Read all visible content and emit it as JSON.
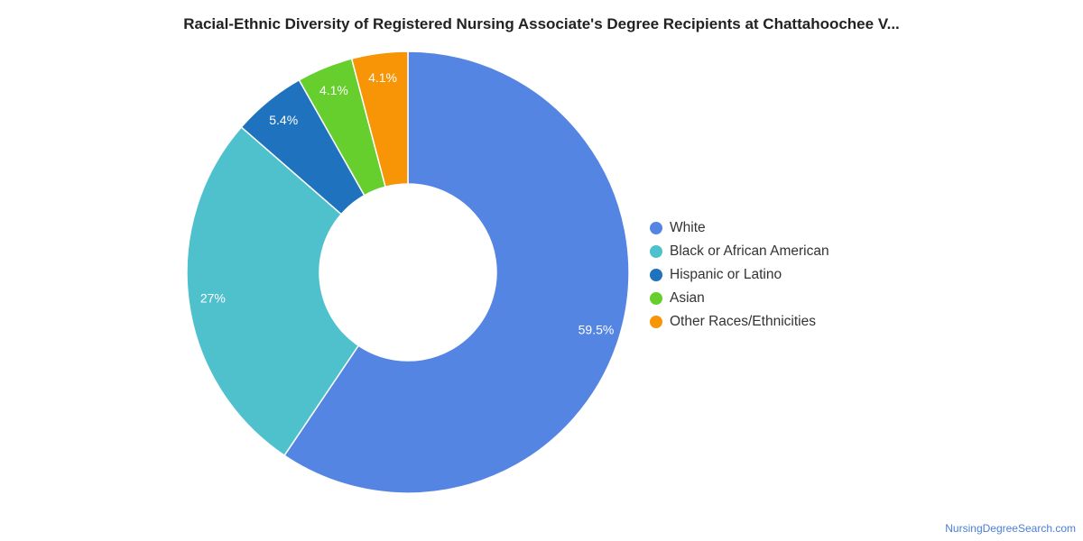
{
  "chart_data": {
    "type": "pie",
    "title": "Racial-Ethnic Diversity of Registered Nursing Associate's Degree Recipients at Chattahoochee V...",
    "donut": true,
    "categories": [
      "White",
      "Black or African American",
      "Hispanic or Latino",
      "Asian",
      "Other Races/Ethnicities"
    ],
    "values": [
      59.5,
      27,
      5.4,
      4.1,
      4.1
    ],
    "value_labels": [
      "59.5%",
      "27%",
      "5.4%",
      "4.1%",
      "4.1%"
    ],
    "colors": [
      "#5585e3",
      "#4fc1cd",
      "#1f72bd",
      "#67cf2d",
      "#f79507"
    ],
    "legend_position": "right"
  },
  "watermark": "NursingDegreeSearch.com"
}
